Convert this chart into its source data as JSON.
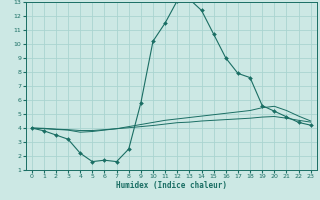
{
  "xlabel": "Humidex (Indice chaleur)",
  "background_color": "#cce8e4",
  "grid_color": "#aad4d0",
  "line_color": "#1a6e64",
  "xlim": [
    -0.5,
    23.5
  ],
  "ylim": [
    1,
    13
  ],
  "xticks": [
    0,
    1,
    2,
    3,
    4,
    5,
    6,
    7,
    8,
    9,
    10,
    11,
    12,
    13,
    14,
    15,
    16,
    17,
    18,
    19,
    20,
    21,
    22,
    23
  ],
  "yticks": [
    1,
    2,
    3,
    4,
    5,
    6,
    7,
    8,
    9,
    10,
    11,
    12,
    13
  ],
  "series": [
    {
      "x": [
        0,
        1,
        2,
        3,
        4,
        5,
        6,
        7,
        8,
        9,
        10,
        11,
        12,
        13,
        14,
        15,
        16,
        17,
        18,
        19,
        20,
        21,
        22,
        23
      ],
      "y": [
        4.0,
        3.8,
        3.5,
        3.2,
        2.2,
        1.6,
        1.7,
        1.6,
        2.5,
        5.8,
        10.2,
        11.5,
        13.1,
        13.2,
        12.4,
        10.7,
        9.0,
        7.9,
        7.6,
        5.6,
        5.2,
        4.8,
        4.4,
        4.2
      ],
      "marker": true
    },
    {
      "x": [
        0,
        1,
        2,
        3,
        4,
        5,
        6,
        7,
        8,
        9,
        10,
        11,
        12,
        13,
        14,
        15,
        16,
        17,
        18,
        19,
        20,
        21,
        22,
        23
      ],
      "y": [
        4.0,
        3.95,
        3.9,
        3.85,
        3.7,
        3.75,
        3.85,
        3.95,
        4.1,
        4.25,
        4.4,
        4.55,
        4.65,
        4.75,
        4.85,
        4.95,
        5.05,
        5.15,
        5.25,
        5.45,
        5.55,
        5.25,
        4.85,
        4.5
      ],
      "marker": false
    },
    {
      "x": [
        0,
        1,
        2,
        3,
        4,
        5,
        6,
        7,
        8,
        9,
        10,
        11,
        12,
        13,
        14,
        15,
        16,
        17,
        18,
        19,
        20,
        21,
        22,
        23
      ],
      "y": [
        4.0,
        3.98,
        3.92,
        3.88,
        3.82,
        3.82,
        3.88,
        3.95,
        4.02,
        4.1,
        4.18,
        4.28,
        4.38,
        4.42,
        4.5,
        4.55,
        4.6,
        4.65,
        4.7,
        4.78,
        4.82,
        4.7,
        4.55,
        4.42
      ],
      "marker": false
    }
  ]
}
